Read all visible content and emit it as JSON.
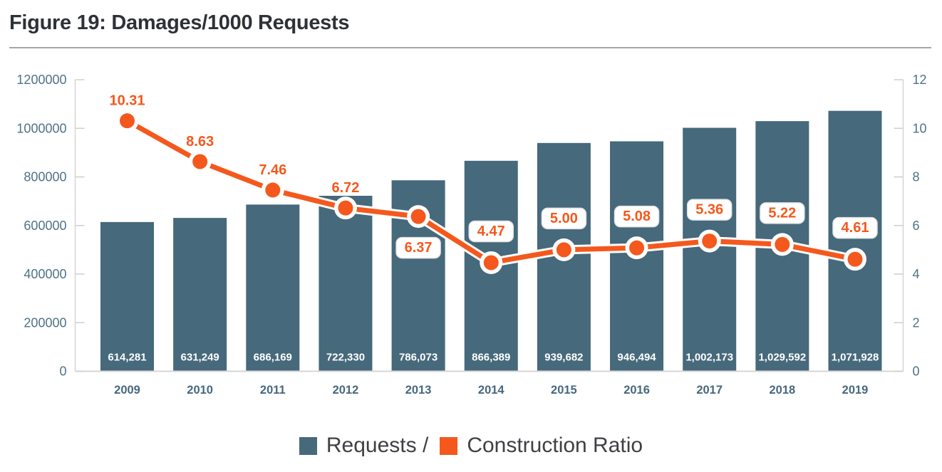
{
  "header": {
    "title": "Figure 19: Damages/1000 Requests"
  },
  "legend": {
    "items": [
      {
        "label": "Requests /",
        "color": "#46697B"
      },
      {
        "label": "Construction Ratio",
        "color": "#F4581D"
      }
    ]
  },
  "colors": {
    "bar": "#46697B",
    "line": "#F4581D",
    "bar_value_text": "#FFFFFF",
    "axis_line": "#D6D6D6",
    "tick_mark": "#CFCFCF",
    "tick_label": "#4E7286",
    "year_label": "#46687E",
    "pill_fill": "#FFFFFF",
    "pill_border": "#E4E4E4"
  },
  "chart_data": {
    "type": "bar",
    "title": "Figure 19: Damages/1000 Requests",
    "categories": [
      "2009",
      "2010",
      "2011",
      "2012",
      "2013",
      "2014",
      "2015",
      "2016",
      "2017",
      "2018",
      "2019"
    ],
    "series": [
      {
        "name": "Requests",
        "type": "bar",
        "axis": "left",
        "values": [
          614281,
          631249,
          686169,
          722330,
          786073,
          866389,
          939682,
          946494,
          1002173,
          1029592,
          1071928
        ],
        "labels": [
          "614,281",
          "631,249",
          "686,169",
          "722,330",
          "786,073",
          "866,389",
          "939,682",
          "946,494",
          "1,002,173",
          "1,029,592",
          "1,071,928"
        ]
      },
      {
        "name": "Construction Ratio",
        "type": "line",
        "axis": "right",
        "values": [
          10.31,
          8.63,
          7.46,
          6.72,
          6.37,
          4.47,
          5.0,
          5.08,
          5.36,
          5.22,
          4.61
        ],
        "labels": [
          "10.31",
          "8.63",
          "7.46",
          "6.72",
          "6.37",
          "4.47",
          "5.00",
          "5.08",
          "5.36",
          "5.22",
          "4.61"
        ],
        "label_below_indices": [
          4
        ]
      }
    ],
    "y_left": {
      "min": 0,
      "max": 1200000,
      "tick_labels_top_to_bottom": [
        "1200000",
        "1000000",
        "800000",
        "600000",
        "400000",
        "200000",
        "0"
      ]
    },
    "y_right": {
      "min": 0,
      "max": 12,
      "tick_labels_top_to_bottom": [
        "12",
        "10",
        "8",
        "6",
        "4",
        "2",
        "0"
      ]
    },
    "grid": "off",
    "legend_position": "bottom-center"
  }
}
